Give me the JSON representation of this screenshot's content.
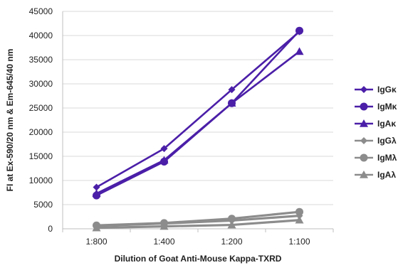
{
  "chart_data": {
    "type": "line",
    "xlabel": "Dilution of Goat Anti-Mouse Kappa-TXRD",
    "ylabel": "FI at Ex-590/20 nm & Em-645/40 nm",
    "categories": [
      "1:800",
      "1:400",
      "1:200",
      "1:100"
    ],
    "ylim": [
      0,
      45000
    ],
    "yticks": [
      0,
      5000,
      10000,
      15000,
      20000,
      25000,
      30000,
      35000,
      40000,
      45000
    ],
    "grid": true,
    "legend_position": "right",
    "series": [
      {
        "name": "IgGκ",
        "values": [
          8600,
          16600,
          28800,
          40800
        ],
        "color": "#4b1fa8",
        "marker": "diamond"
      },
      {
        "name": "IgMκ",
        "values": [
          6900,
          13900,
          26000,
          41000
        ],
        "color": "#4b1fa8",
        "marker": "circle"
      },
      {
        "name": "IgAκ",
        "values": [
          7300,
          14200,
          26000,
          36700
        ],
        "color": "#4b1fa8",
        "marker": "triangle"
      },
      {
        "name": "IgGλ",
        "values": [
          600,
          1100,
          1700,
          2700
        ],
        "color": "#8c8c8c",
        "marker": "diamond"
      },
      {
        "name": "IgMλ",
        "values": [
          700,
          1200,
          2100,
          3500
        ],
        "color": "#8c8c8c",
        "marker": "circle"
      },
      {
        "name": "IgAλ",
        "values": [
          200,
          500,
          800,
          1800
        ],
        "color": "#8c8c8c",
        "marker": "triangle"
      }
    ]
  }
}
